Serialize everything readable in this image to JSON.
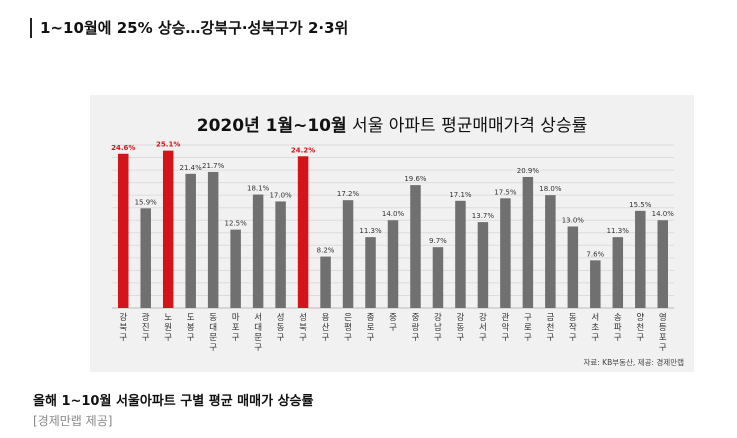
{
  "article": {
    "headline": "1~10월에 25% 상승…강북구·성북구가 2·3위",
    "caption": "올해 1~10월 서울아파트 구별 평균 매매가 상승률",
    "credit": "[경제만랩 제공]"
  },
  "chart_data": {
    "type": "bar",
    "title": "2020년 1월~10월 서울 아파트 평균매매가격 상승률",
    "title_bold_part": "2020년 1월~10월",
    "title_rest": " 서울 아파트 평균매매가격 상승률",
    "source": "자료: KB부동산, 제공: 경제만랩",
    "xlabel": "",
    "ylabel": "",
    "ylim": [
      0,
      26
    ],
    "grid": true,
    "colors": {
      "highlight": "#d3141b",
      "normal": "#707070",
      "label_highlight": "#d3141b",
      "label_normal": "#333333"
    },
    "categories": [
      "강북구",
      "광진구",
      "노원구",
      "도봉구",
      "동대문구",
      "마포구",
      "서대문구",
      "성동구",
      "성북구",
      "용산구",
      "은평구",
      "종로구",
      "중구",
      "중랑구",
      "강남구",
      "강동구",
      "강서구",
      "관악구",
      "구로구",
      "금천구",
      "동작구",
      "서초구",
      "송파구",
      "양천구",
      "영등포구"
    ],
    "value_labels": [
      "24.6%",
      "15.9%",
      "25.1%",
      "21.4%",
      "21.7%",
      "12.5%",
      "18.1%",
      "17.0%",
      "24.2%",
      "8.2%",
      "17.2%",
      "11.3%",
      "14.0%",
      "19.6%",
      "9.7%",
      "17.1%",
      "13.7%",
      "17.5%",
      "20.9%",
      "18.0%",
      "13.0%",
      "7.6%",
      "11.3%",
      "15.5%",
      "14.0%"
    ],
    "values": [
      24.6,
      15.9,
      25.1,
      21.4,
      21.7,
      12.5,
      18.1,
      17.0,
      24.2,
      8.2,
      17.2,
      11.3,
      14.0,
      19.6,
      9.7,
      17.1,
      13.7,
      17.5,
      20.9,
      18.0,
      13.0,
      7.6,
      11.3,
      15.5,
      14.0
    ],
    "highlight": [
      "강북구",
      "노원구",
      "성북구"
    ]
  }
}
